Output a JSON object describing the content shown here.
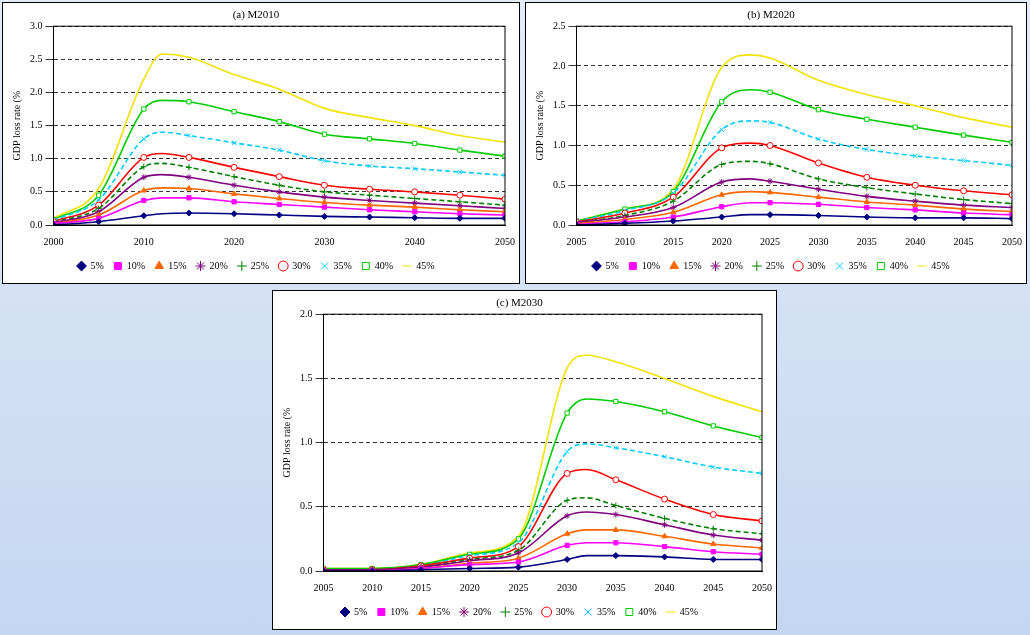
{
  "chart_data": [
    {
      "type": "line",
      "title": "(a) M2010",
      "y_label": "GDP loss rate (%",
      "x": [
        2000,
        2005,
        2010,
        2012,
        2015,
        2020,
        2025,
        2030,
        2035,
        2040,
        2045,
        2050
      ],
      "xlim": [
        2000,
        2050
      ],
      "xticks": [
        2000,
        2010,
        2020,
        2030,
        2040,
        2050
      ],
      "ylim": [
        0,
        3
      ],
      "yticks": [
        {
          "value": 0,
          "label": "0.0"
        },
        {
          "value": 0.5,
          "label": "0.5"
        },
        {
          "value": 1,
          "label": "1.0"
        },
        {
          "value": 1.5,
          "label": "1.5"
        },
        {
          "value": 2,
          "label": "2.0"
        },
        {
          "value": 2.5,
          "label": "2.5"
        },
        {
          "value": 3,
          "label": "3.0"
        }
      ],
      "grid": true,
      "legend": "bottom",
      "series": [
        {
          "name": "5%",
          "color": "#000080",
          "marker": "diamond",
          "line_style": "solid",
          "values": [
            0.0,
            0.05,
            0.14,
            0.17,
            0.18,
            0.17,
            0.15,
            0.13,
            0.12,
            0.11,
            0.1,
            0.1
          ]
        },
        {
          "name": "10%",
          "color": "#FF00FF",
          "marker": "square",
          "line_style": "solid",
          "values": [
            0.02,
            0.1,
            0.37,
            0.41,
            0.41,
            0.35,
            0.31,
            0.27,
            0.23,
            0.2,
            0.17,
            0.15
          ]
        },
        {
          "name": "15%",
          "color": "#FF6600",
          "marker": "triangle",
          "line_style": "solid",
          "values": [
            0.02,
            0.15,
            0.52,
            0.56,
            0.55,
            0.47,
            0.4,
            0.34,
            0.3,
            0.27,
            0.23,
            0.2
          ]
        },
        {
          "name": "20%",
          "color": "#800080",
          "marker": "star",
          "line_style": "solid",
          "values": [
            0.03,
            0.2,
            0.72,
            0.76,
            0.72,
            0.6,
            0.5,
            0.42,
            0.37,
            0.33,
            0.29,
            0.25
          ]
        },
        {
          "name": "25%",
          "color": "#008000",
          "marker": "plus",
          "line_style": "dashed",
          "values": [
            0.04,
            0.25,
            0.88,
            0.93,
            0.87,
            0.73,
            0.6,
            0.5,
            0.45,
            0.4,
            0.35,
            0.3
          ]
        },
        {
          "name": "30%",
          "color": "#FF0000",
          "marker": "open circle",
          "line_style": "solid",
          "values": [
            0.05,
            0.3,
            1.02,
            1.08,
            1.02,
            0.87,
            0.73,
            0.6,
            0.54,
            0.5,
            0.45,
            0.39
          ]
        },
        {
          "name": "35%",
          "color": "#00CCFF",
          "marker": "x",
          "line_style": "dashed",
          "values": [
            0.07,
            0.38,
            1.3,
            1.4,
            1.35,
            1.24,
            1.13,
            0.97,
            0.89,
            0.85,
            0.8,
            0.75
          ]
        },
        {
          "name": "40%",
          "color": "#00CC00",
          "marker": "open square",
          "line_style": "solid",
          "values": [
            0.08,
            0.45,
            1.75,
            1.88,
            1.86,
            1.71,
            1.56,
            1.37,
            1.3,
            1.23,
            1.13,
            1.04
          ]
        },
        {
          "name": "45%",
          "color": "#F2E200",
          "marker": "none",
          "line_style": "solid",
          "values": [
            0.1,
            0.55,
            2.2,
            2.58,
            2.53,
            2.27,
            2.05,
            1.76,
            1.62,
            1.5,
            1.35,
            1.25
          ]
        }
      ]
    },
    {
      "type": "line",
      "title": "(b) M2020",
      "y_label": "GDP loss rate (%",
      "x": [
        2005,
        2010,
        2015,
        2020,
        2023,
        2025,
        2030,
        2035,
        2040,
        2045,
        2050
      ],
      "xlim": [
        2005,
        2050
      ],
      "xticks": [
        2005,
        2010,
        2015,
        2020,
        2025,
        2030,
        2035,
        2040,
        2045,
        2050
      ],
      "ylim": [
        0,
        2.5
      ],
      "yticks": [
        {
          "value": 0,
          "label": "0.0"
        },
        {
          "value": 0.5,
          "label": "0.5"
        },
        {
          "value": 1,
          "label": "1.0"
        },
        {
          "value": 1.5,
          "label": "1.5"
        },
        {
          "value": 2,
          "label": "2.0"
        },
        {
          "value": 2.5,
          "label": "2.5"
        }
      ],
      "grid": true,
      "legend": "bottom",
      "series": [
        {
          "name": "5%",
          "color": "#000080",
          "marker": "diamond",
          "line_style": "solid",
          "values": [
            0.0,
            0.02,
            0.05,
            0.1,
            0.13,
            0.13,
            0.12,
            0.1,
            0.09,
            0.09,
            0.08
          ]
        },
        {
          "name": "10%",
          "color": "#FF00FF",
          "marker": "square",
          "line_style": "solid",
          "values": [
            0.01,
            0.04,
            0.1,
            0.23,
            0.28,
            0.28,
            0.26,
            0.22,
            0.19,
            0.15,
            0.13
          ]
        },
        {
          "name": "15%",
          "color": "#FF6600",
          "marker": "triangle",
          "line_style": "solid",
          "values": [
            0.02,
            0.07,
            0.16,
            0.38,
            0.42,
            0.41,
            0.35,
            0.29,
            0.25,
            0.2,
            0.17
          ]
        },
        {
          "name": "20%",
          "color": "#800080",
          "marker": "star",
          "line_style": "solid",
          "values": [
            0.03,
            0.1,
            0.22,
            0.54,
            0.58,
            0.55,
            0.45,
            0.36,
            0.3,
            0.25,
            0.22
          ]
        },
        {
          "name": "25%",
          "color": "#008000",
          "marker": "plus",
          "line_style": "dashed",
          "values": [
            0.03,
            0.12,
            0.3,
            0.76,
            0.8,
            0.77,
            0.58,
            0.47,
            0.39,
            0.32,
            0.27
          ]
        },
        {
          "name": "30%",
          "color": "#FF0000",
          "marker": "open circle",
          "line_style": "solid",
          "values": [
            0.04,
            0.15,
            0.35,
            0.97,
            1.03,
            1.0,
            0.78,
            0.6,
            0.5,
            0.43,
            0.38
          ]
        },
        {
          "name": "35%",
          "color": "#00CCFF",
          "marker": "x",
          "line_style": "dashed",
          "values": [
            0.05,
            0.18,
            0.4,
            1.2,
            1.31,
            1.29,
            1.08,
            0.95,
            0.87,
            0.81,
            0.75
          ]
        },
        {
          "name": "40%",
          "color": "#00CC00",
          "marker": "open square",
          "line_style": "solid",
          "values": [
            0.05,
            0.2,
            0.42,
            1.55,
            1.7,
            1.67,
            1.45,
            1.33,
            1.23,
            1.13,
            1.04
          ]
        },
        {
          "name": "45%",
          "color": "#F2E200",
          "marker": "none",
          "line_style": "solid",
          "values": [
            0.05,
            0.2,
            0.45,
            1.98,
            2.14,
            2.1,
            1.82,
            1.64,
            1.5,
            1.35,
            1.23
          ]
        }
      ]
    },
    {
      "type": "line",
      "title": "(c) M2030",
      "y_label": "GDP loss rate (%",
      "x": [
        2005,
        2010,
        2015,
        2020,
        2025,
        2030,
        2032,
        2035,
        2040,
        2045,
        2050
      ],
      "xlim": [
        2005,
        2050
      ],
      "xticks": [
        2005,
        2010,
        2015,
        2020,
        2025,
        2030,
        2035,
        2040,
        2045,
        2050
      ],
      "ylim": [
        0,
        2
      ],
      "yticks": [
        {
          "value": 0,
          "label": "0.0"
        },
        {
          "value": 0.5,
          "label": "0.5"
        },
        {
          "value": 1,
          "label": "1.0"
        },
        {
          "value": 1.5,
          "label": "1.5"
        },
        {
          "value": 2,
          "label": "2.0"
        }
      ],
      "grid": true,
      "legend": "bottom",
      "series": [
        {
          "name": "5%",
          "color": "#000080",
          "marker": "diamond",
          "line_style": "solid",
          "values": [
            0.0,
            0.0,
            0.01,
            0.02,
            0.03,
            0.09,
            0.12,
            0.12,
            0.11,
            0.09,
            0.09
          ]
        },
        {
          "name": "10%",
          "color": "#FF00FF",
          "marker": "square",
          "line_style": "solid",
          "values": [
            0.0,
            0.0,
            0.02,
            0.05,
            0.07,
            0.2,
            0.22,
            0.22,
            0.19,
            0.15,
            0.13
          ]
        },
        {
          "name": "15%",
          "color": "#FF6600",
          "marker": "triangle",
          "line_style": "solid",
          "values": [
            0.0,
            0.0,
            0.02,
            0.06,
            0.1,
            0.29,
            0.32,
            0.32,
            0.27,
            0.21,
            0.18
          ]
        },
        {
          "name": "20%",
          "color": "#800080",
          "marker": "star",
          "line_style": "solid",
          "values": [
            0.01,
            0.01,
            0.03,
            0.08,
            0.14,
            0.43,
            0.46,
            0.44,
            0.36,
            0.28,
            0.24
          ]
        },
        {
          "name": "25%",
          "color": "#008000",
          "marker": "plus",
          "line_style": "dashed",
          "values": [
            0.01,
            0.01,
            0.03,
            0.09,
            0.16,
            0.55,
            0.57,
            0.51,
            0.41,
            0.33,
            0.29
          ]
        },
        {
          "name": "30%",
          "color": "#FF0000",
          "marker": "open circle",
          "line_style": "solid",
          "values": [
            0.01,
            0.01,
            0.04,
            0.1,
            0.19,
            0.76,
            0.79,
            0.71,
            0.56,
            0.44,
            0.39
          ]
        },
        {
          "name": "35%",
          "color": "#00CCFF",
          "marker": "x",
          "line_style": "dashed",
          "values": [
            0.01,
            0.01,
            0.04,
            0.12,
            0.22,
            0.93,
            0.99,
            0.96,
            0.89,
            0.81,
            0.76
          ]
        },
        {
          "name": "40%",
          "color": "#00CC00",
          "marker": "open square",
          "line_style": "solid",
          "values": [
            0.02,
            0.02,
            0.05,
            0.13,
            0.25,
            1.23,
            1.34,
            1.32,
            1.24,
            1.13,
            1.04
          ]
        },
        {
          "name": "45%",
          "color": "#F2E200",
          "marker": "none",
          "line_style": "solid",
          "values": [
            0.02,
            0.02,
            0.05,
            0.14,
            0.27,
            1.58,
            1.68,
            1.63,
            1.5,
            1.36,
            1.24
          ]
        }
      ]
    }
  ]
}
